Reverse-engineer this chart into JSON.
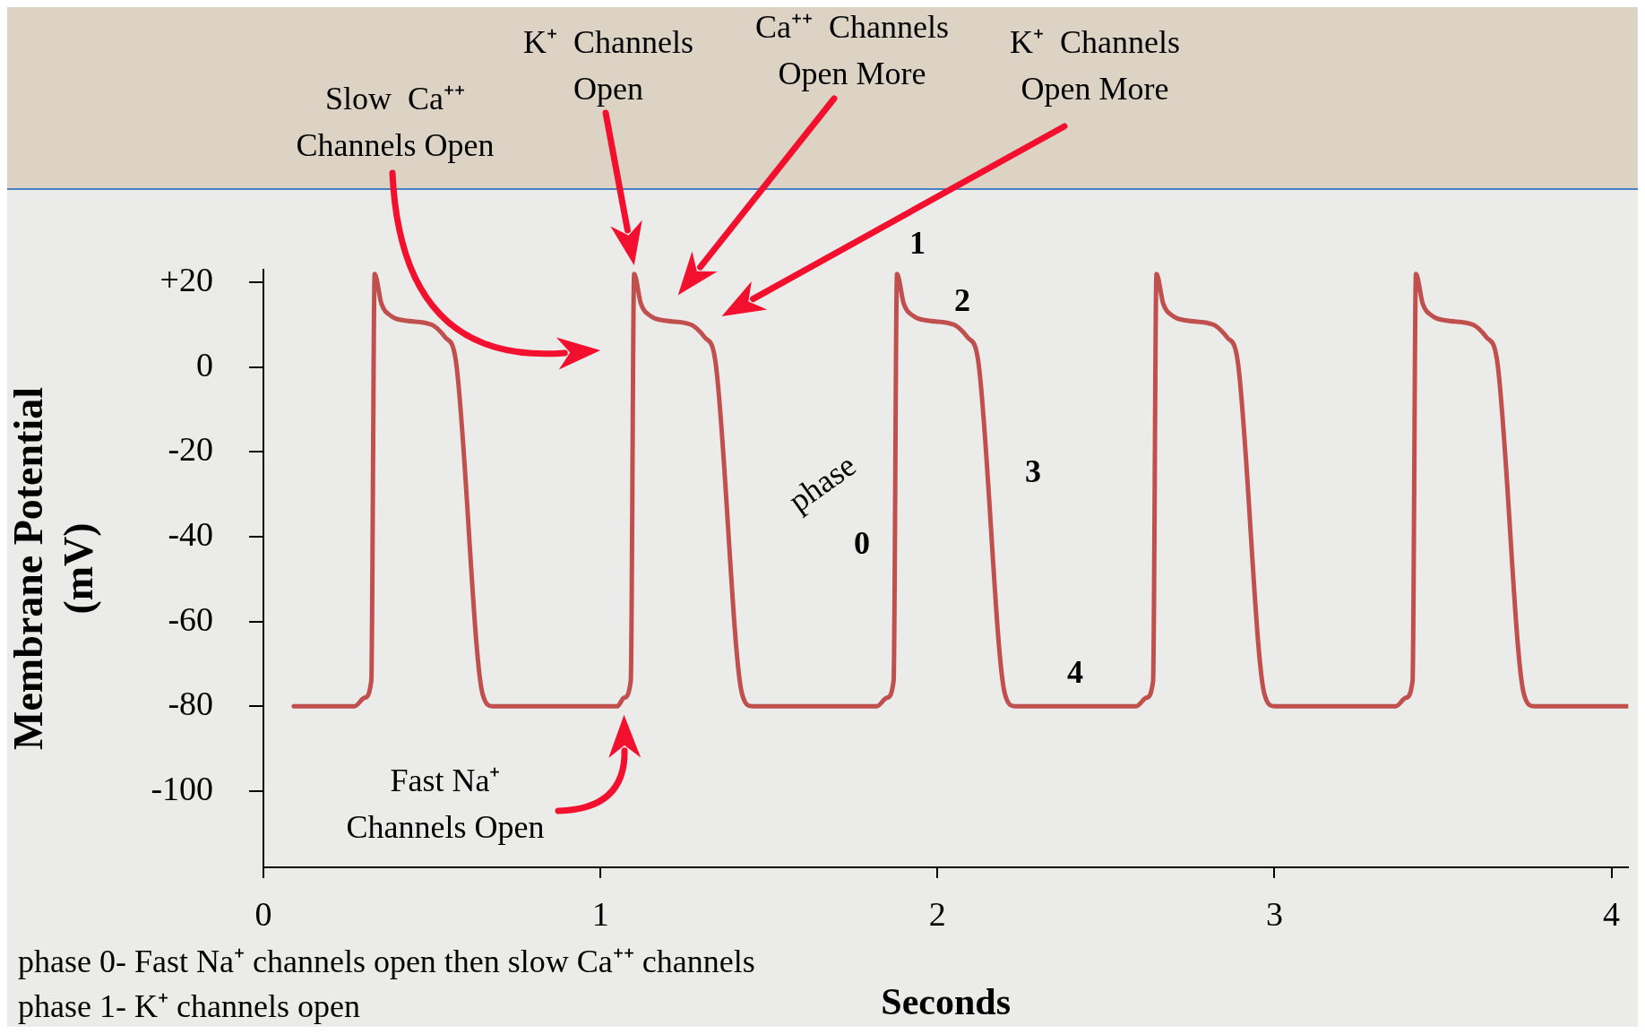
{
  "chart_data": {
    "type": "line",
    "xlabel": "Seconds",
    "ylabel": "Membrane Potential\n(mV)",
    "color": "#c0504d",
    "x": [
      0.09,
      0.27,
      0.3,
      0.32,
      0.33,
      0.35,
      0.38,
      0.42,
      0.5,
      0.54,
      0.57,
      0.65,
      0.68,
      1.05,
      1.07,
      1.09,
      1.1,
      1.12,
      1.15,
      1.19,
      1.27,
      1.31,
      1.34,
      1.42,
      1.45,
      1.82,
      1.85,
      1.87,
      1.88,
      1.9,
      1.93,
      1.97,
      2.05,
      2.09,
      2.12,
      2.2,
      2.23,
      2.59,
      2.62,
      2.64,
      2.65,
      2.67,
      2.7,
      2.74,
      2.82,
      2.86,
      2.89,
      2.97,
      3.0,
      3.36,
      3.39,
      3.41,
      3.42,
      3.44,
      3.47,
      3.51,
      3.59,
      3.63,
      3.66,
      3.74,
      3.77,
      4.05
    ],
    "values": [
      -80,
      -80,
      -78,
      -74,
      22,
      15,
      12,
      11,
      10,
      7,
      2,
      -77,
      -80,
      -80,
      -78,
      -74,
      22,
      15,
      12,
      11,
      10,
      7,
      2,
      -77,
      -80,
      -80,
      -78,
      -74,
      22,
      15,
      12,
      11,
      10,
      7,
      2,
      -77,
      -80,
      -80,
      -78,
      -74,
      22,
      15,
      12,
      11,
      10,
      7,
      2,
      -77,
      -80,
      -80,
      -78,
      -74,
      22,
      15,
      12,
      11,
      10,
      7,
      2,
      -77,
      -80,
      -80
    ],
    "xlim": [
      0,
      4.05
    ],
    "xticks": [
      0,
      1,
      2,
      3,
      4
    ],
    "ylim": [
      -118,
      23
    ],
    "yticks": [
      {
        "value": 20,
        "label": "+20"
      },
      0,
      -20,
      -40,
      -60,
      -80,
      -100
    ],
    "grid": false,
    "annotations": [
      "Slow  Ca⁺⁺\nChannels Open",
      "K⁺  Channels\nOpen",
      "Ca⁺⁺  Channels\nOpen More",
      "K⁺  Channels\nOpen More",
      "Fast Na⁺\nChannels Open",
      "phase",
      "0",
      "1",
      "2",
      "3",
      "4",
      "phase 0- Fast Na⁺ channels open then slow Ca⁺⁺ channels",
      "phase 1- K⁺ channels open"
    ]
  }
}
